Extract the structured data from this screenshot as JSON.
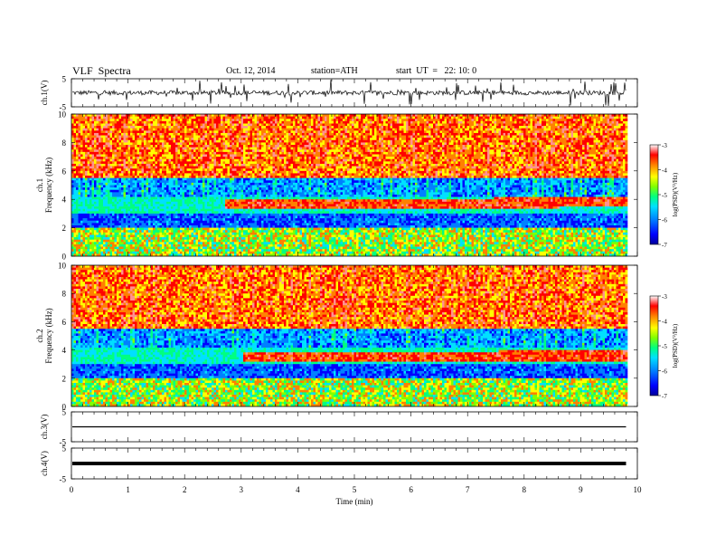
{
  "header": {
    "title": "VLF  Spectra",
    "date": "Oct. 12, 2014",
    "station": "station=ATH",
    "start": "start  UT  =   22: 10: 0"
  },
  "chart_data": [
    {
      "type": "line",
      "name": "ch1-waveform",
      "ylabel": "ch.1(V)",
      "ylim": [
        -5,
        5
      ],
      "yticks": [
        "5",
        "-5"
      ],
      "xlim": [
        0,
        10
      ],
      "data_end_min": 9.8,
      "baseline": 0,
      "amplitude_note": "noisy trace with frequent spikes"
    },
    {
      "type": "heatmap",
      "name": "ch1-spectrogram",
      "ylabel": "ch.1\nFrequency  (kHz)",
      "ylim": [
        0,
        10
      ],
      "yticks": [
        "0",
        "2",
        "4",
        "6",
        "8",
        "10"
      ],
      "xlim": [
        0,
        10
      ],
      "data_end_min": 9.8,
      "colorbar": {
        "label": "log(PSD)(V²/Hz)",
        "range": [
          -7,
          -3
        ],
        "ticks": [
          "-3",
          "-4",
          "-5",
          "-6",
          "-7"
        ]
      },
      "band": {
        "start_min": 2.7,
        "end_min": 9.8,
        "freq_start_khz": 3.6,
        "freq_end_khz": 3.8
      }
    },
    {
      "type": "heatmap",
      "name": "ch2-spectrogram",
      "ylabel": "ch.2\nFrequency  (kHz)",
      "ylim": [
        0,
        10
      ],
      "yticks": [
        "0",
        "2",
        "4",
        "6",
        "8",
        "10"
      ],
      "xlim": [
        0,
        10
      ],
      "data_end_min": 9.8,
      "colorbar": {
        "label": "log(PSD)(V²/Hz)",
        "range": [
          -7,
          -3
        ],
        "ticks": [
          "-3",
          "-4",
          "-5",
          "-6",
          "-7"
        ]
      },
      "band": {
        "start_min": 3.0,
        "end_min": 9.8,
        "freq_start_khz": 3.5,
        "freq_end_khz": 3.6
      }
    },
    {
      "type": "line",
      "name": "ch3-waveform",
      "ylabel": "ch.3(V)",
      "ylim": [
        -5,
        5
      ],
      "yticks": [
        "5",
        "-5"
      ],
      "xlim": [
        0,
        10
      ],
      "data_end_min": 9.8,
      "baseline": 0
    },
    {
      "type": "line",
      "name": "ch4-waveform",
      "ylabel": "ch.4(V)",
      "ylim": [
        -5,
        5
      ],
      "yticks": [
        "5",
        "-5"
      ],
      "xlim": [
        0,
        10
      ],
      "data_end_min": 9.8,
      "baseline": 0,
      "xlabel": "Time  (min)",
      "xticks": [
        "0",
        "1",
        "2",
        "3",
        "4",
        "5",
        "6",
        "7",
        "8",
        "9",
        "10"
      ]
    }
  ],
  "colors": {
    "colormap": [
      "#00009a",
      "#0000ff",
      "#0080ff",
      "#00e0ff",
      "#00ff80",
      "#80ff00",
      "#ffff00",
      "#ff8000",
      "#ff0000",
      "#ff9090",
      "#ffffff"
    ]
  }
}
